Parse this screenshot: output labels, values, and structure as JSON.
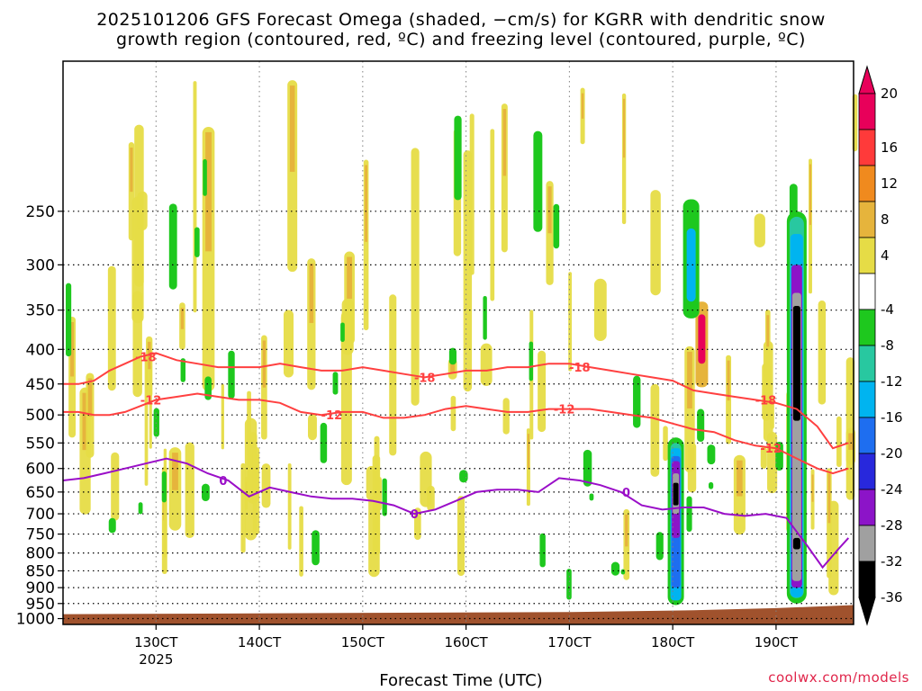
{
  "chart_data": {
    "type": "heatmap",
    "title_line1": "2025101206 GFS Forecast Omega (shaded, −cm/s) for KGRR with dendritic snow",
    "title_line2": "growth region (contoured, red, ºC) and freezing level (contoured, purple, ºC)",
    "xlabel": "Forecast Time (UTC)",
    "x_ticks": [
      "130CT",
      "140CT",
      "150CT",
      "160CT",
      "170CT",
      "180CT",
      "190CT"
    ],
    "x_tick_values": [
      13,
      14,
      15,
      16,
      17,
      18,
      19
    ],
    "x_sublabel": "2025",
    "xlim": [
      12.1,
      19.75
    ],
    "ylabel": "",
    "y_ticks": [
      250,
      300,
      350,
      400,
      450,
      500,
      550,
      600,
      650,
      700,
      750,
      800,
      850,
      900,
      950,
      1000
    ],
    "ylim": [
      150,
      1020
    ],
    "y_scale": "log-pressure",
    "colorbar": {
      "levels": [
        "20",
        "16",
        "12",
        "8",
        "4",
        "-4",
        "-8",
        "-12",
        "-16",
        "-20",
        "-24",
        "-28",
        "-32",
        "-36"
      ],
      "colors": [
        "#e8005a",
        "#ff3a3a",
        "#f08a1e",
        "#e6b43c",
        "#e6dc46",
        "#ffffff",
        "#1ec81e",
        "#28c8a0",
        "#00b4f0",
        "#1e6ef0",
        "#2828dc",
        "#8c14c8",
        "#a0a0a0",
        "#000000"
      ]
    },
    "contours": [
      {
        "label": "-18",
        "color": "#ff4040",
        "x": [
          12.1,
          12.25,
          12.4,
          12.55,
          12.7,
          12.85,
          13.0,
          13.2,
          13.4,
          13.6,
          13.8,
          14.0,
          14.2,
          14.4,
          14.6,
          14.8,
          15.0,
          15.2,
          15.4,
          15.6,
          15.8,
          16.0,
          16.2,
          16.4,
          16.6,
          16.8,
          17.0,
          17.2,
          17.4,
          17.6,
          17.8,
          18.0,
          18.2,
          18.4,
          18.6,
          18.8,
          19.0,
          19.2,
          19.4,
          19.55,
          19.7
        ],
        "y": [
          450,
          450,
          445,
          430,
          420,
          410,
          405,
          415,
          420,
          425,
          425,
          425,
          420,
          425,
          430,
          430,
          425,
          430,
          435,
          440,
          435,
          430,
          430,
          425,
          425,
          420,
          420,
          425,
          430,
          435,
          440,
          445,
          460,
          465,
          470,
          475,
          480,
          490,
          520,
          560,
          550
        ],
        "label_x": [
          12.9,
          15.6,
          17.1,
          18.9
        ]
      },
      {
        "label": "-12",
        "color": "#ff4040",
        "x": [
          12.1,
          12.25,
          12.4,
          12.55,
          12.7,
          12.85,
          13.0,
          13.2,
          13.4,
          13.6,
          13.8,
          14.0,
          14.2,
          14.4,
          14.6,
          14.8,
          15.0,
          15.2,
          15.4,
          15.6,
          15.8,
          16.0,
          16.2,
          16.4,
          16.6,
          16.8,
          17.0,
          17.2,
          17.4,
          17.6,
          17.8,
          18.0,
          18.2,
          18.4,
          18.6,
          18.8,
          19.0,
          19.2,
          19.4,
          19.55,
          19.7
        ],
        "y": [
          495,
          495,
          500,
          500,
          495,
          485,
          475,
          470,
          465,
          470,
          475,
          475,
          480,
          495,
          500,
          495,
          495,
          505,
          505,
          500,
          490,
          485,
          490,
          495,
          495,
          490,
          490,
          490,
          495,
          500,
          505,
          515,
          525,
          530,
          545,
          555,
          560,
          580,
          600,
          610,
          600
        ],
        "label_x": [
          12.95,
          14.7,
          16.95,
          18.95
        ]
      },
      {
        "label": "0",
        "color": "#9a0ec8",
        "x": [
          12.1,
          12.3,
          12.5,
          12.7,
          12.9,
          13.1,
          13.3,
          13.5,
          13.7,
          13.9,
          14.1,
          14.3,
          14.5,
          14.7,
          14.9,
          15.1,
          15.3,
          15.5,
          15.7,
          15.9,
          16.1,
          16.3,
          16.5,
          16.7,
          16.9,
          17.1,
          17.3,
          17.5,
          17.7,
          17.9,
          18.1,
          18.3,
          18.5,
          18.7,
          18.9,
          19.1,
          19.3,
          19.45,
          19.6,
          19.7
        ],
        "y": [
          625,
          620,
          610,
          600,
          590,
          580,
          590,
          610,
          625,
          660,
          640,
          650,
          660,
          665,
          665,
          670,
          680,
          700,
          690,
          670,
          650,
          645,
          645,
          650,
          620,
          625,
          635,
          650,
          680,
          690,
          685,
          685,
          700,
          705,
          700,
          710,
          780,
          840,
          790,
          760
        ],
        "label_x": [
          13.65,
          15.5,
          17.55
        ]
      }
    ],
    "shading_note": "scattered upward-motion (positive) yellow/orange streaks; strong negative (sinking) columns near 180CT and 192CT"
  },
  "credit": "coolwx.com/models"
}
